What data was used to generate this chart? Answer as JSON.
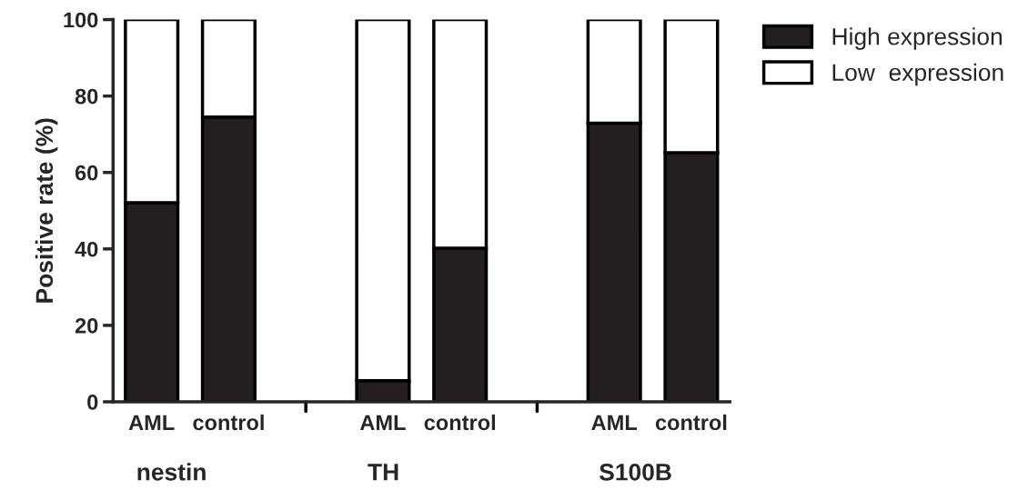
{
  "chart_data": {
    "type": "bar",
    "stacked": true,
    "ylabel": "Positive rate (%)",
    "categories": [
      "AML",
      "control",
      null,
      "AML",
      "control",
      null,
      "AML",
      "control"
    ],
    "series": [
      {
        "name": "High expression",
        "color": "#231f20",
        "values": [
          52.1,
          74.5,
          null,
          5.5,
          40.2,
          null,
          72.9,
          65.2
        ]
      },
      {
        "name": "Low  expression",
        "color": "#ffffff",
        "values": [
          47.9,
          25.5,
          null,
          94.5,
          59.8,
          null,
          27.1,
          34.8
        ]
      }
    ],
    "annotations": [
      "nestin",
      "TH",
      "S100B"
    ],
    "ylim": [
      0,
      100
    ],
    "yticks": [
      0,
      20,
      40,
      60,
      80,
      100
    ],
    "grid": false,
    "legend": "top right"
  }
}
